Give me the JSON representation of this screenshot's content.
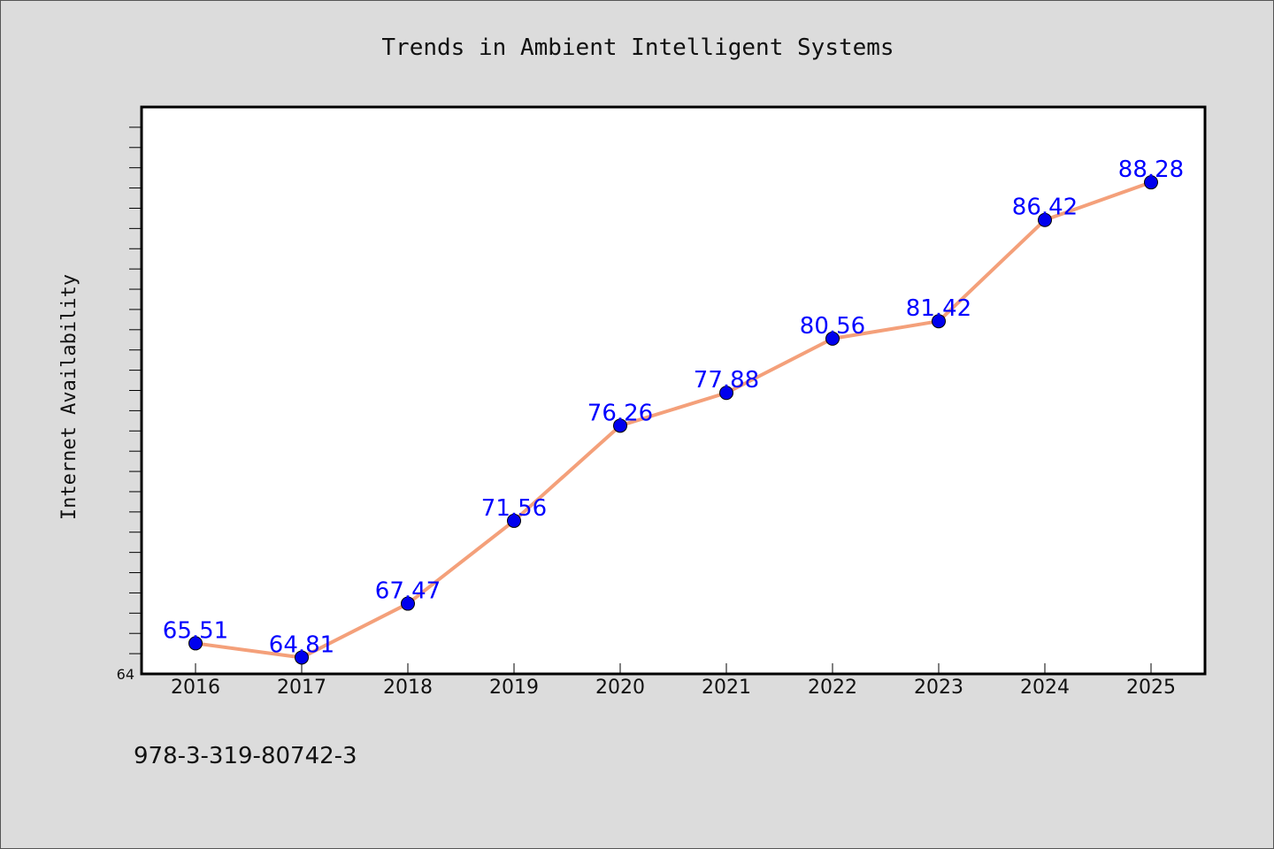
{
  "chart_data": {
    "type": "line",
    "title": "Trends in Ambient Intelligent Systems",
    "xlabel": "",
    "ylabel": "Internet Availability",
    "categories": [
      "2016",
      "2017",
      "2018",
      "2019",
      "2020",
      "2021",
      "2022",
      "2023",
      "2024",
      "2025"
    ],
    "series": [
      {
        "values": [
          65.51,
          64.81,
          67.47,
          71.56,
          76.26,
          77.88,
          80.56,
          81.42,
          86.42,
          88.28
        ],
        "labels": [
          "65.51",
          "64.81",
          "67.47",
          "71.56",
          "76.26",
          "77.88",
          "80.56",
          "81.42",
          "86.42",
          "88.28"
        ],
        "line_color": "#f4a07a",
        "marker_color": "#0000ee",
        "label_color": "#0000ff"
      }
    ],
    "ylim": [
      64,
      92
    ],
    "y_tick_label": "64",
    "grid": false,
    "legend": "none",
    "background_color": "#dcdcdc",
    "plot_background": "#ffffff"
  },
  "footer": {
    "isbn": "978-3-319-80742-3"
  }
}
